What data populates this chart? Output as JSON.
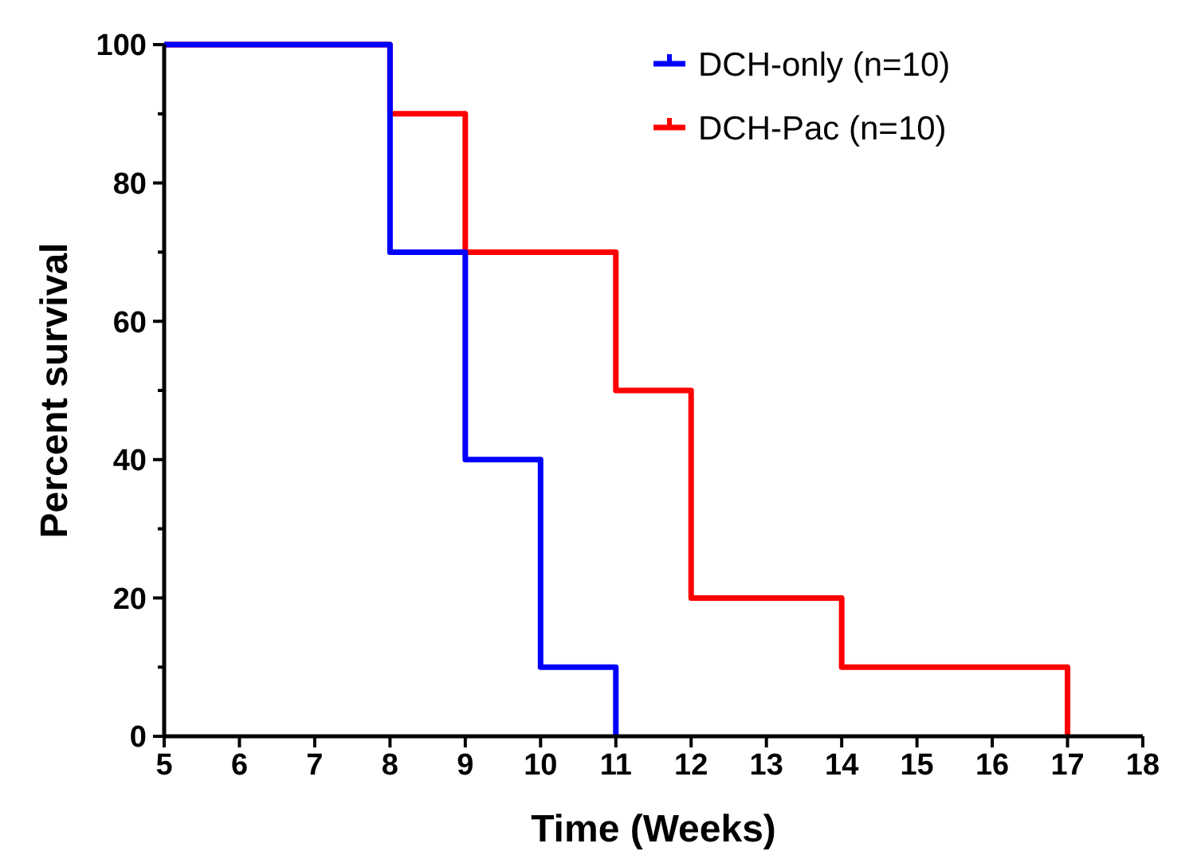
{
  "chart_data": {
    "type": "step",
    "xlabel": "Time (Weeks)",
    "ylabel": "Percent survival",
    "xlim": [
      5,
      18
    ],
    "xticks": [
      5,
      6,
      7,
      8,
      9,
      10,
      11,
      12,
      13,
      14,
      15,
      16,
      17,
      18
    ],
    "ylim": [
      0,
      100
    ],
    "yticks": [
      0,
      {
        "value": 10,
        "label": null
      },
      20,
      {
        "value": 30,
        "label": null
      },
      40,
      {
        "value": 50,
        "label": null
      },
      60,
      {
        "value": 70,
        "label": null
      },
      80,
      {
        "value": 90,
        "label": null
      },
      100
    ],
    "legend": "top right",
    "grid": false,
    "series": [
      {
        "name": "DCH-only (n=10)",
        "color": "#0000ff",
        "x": [
          5,
          8,
          9,
          10,
          11
        ],
        "values": [
          100,
          70,
          40,
          10,
          0
        ]
      },
      {
        "name": "DCH-Pac (n=10)",
        "color": "#ff0000",
        "x": [
          5,
          8,
          9,
          11,
          12,
          14,
          17
        ],
        "values": [
          100,
          90,
          70,
          50,
          20,
          10,
          0
        ]
      }
    ]
  }
}
